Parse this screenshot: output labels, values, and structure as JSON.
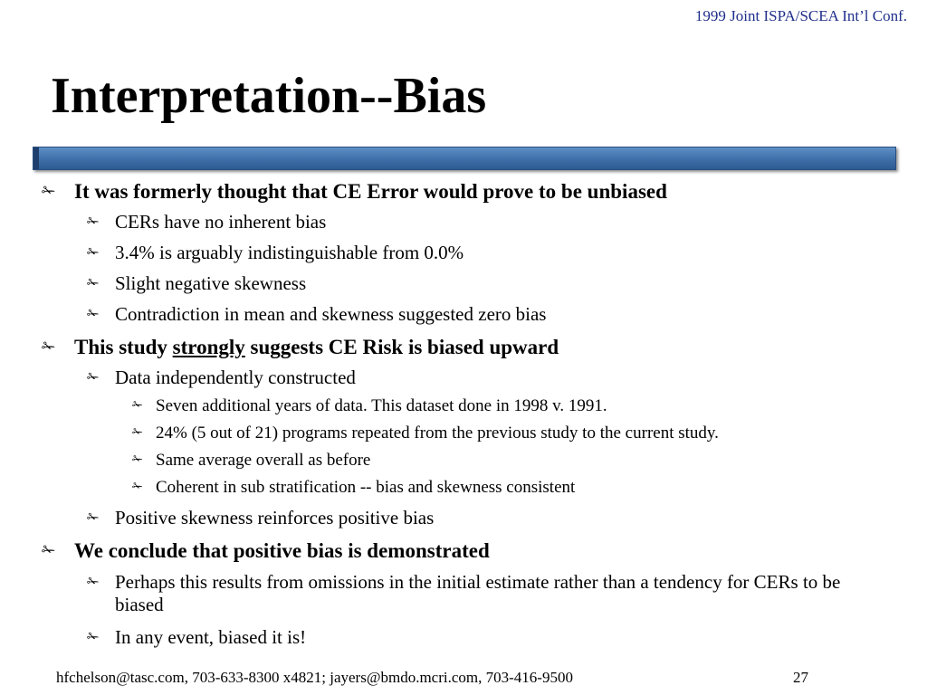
{
  "header": {
    "conference": "1999 Joint ISPA/SCEA Int’l Conf."
  },
  "slide": {
    "title": "Interpretation--Bias",
    "bullet_glyph": "✁",
    "bullets": [
      "It was formerly thought that CE Error would prove to be unbiased",
      "CERs have no inherent bias",
      "3.4% is arguably indistinguishable from 0.0%",
      "Slight negative skewness",
      "Contradiction in mean and skewness suggested zero bias",
      {
        "before": "This study ",
        "emphasis": "strongly",
        "after": " suggests CE Risk is biased upward"
      },
      "Data independently constructed",
      "Seven additional years of data.  This dataset done in 1998 v. 1991.",
      "24% (5 out of 21) programs repeated from the previous study to the current study.",
      "Same average overall as before",
      "Coherent in sub stratification -- bias and skewness consistent",
      "Positive skewness reinforces positive bias",
      "We conclude that positive bias is demonstrated",
      "Perhaps this results from omissions in the initial estimate rather than a tendency for CERs to be biased",
      "In any event, biased it is!"
    ]
  },
  "footer": {
    "contact": "hfchelson@tasc.com, 703-633-8300 x4821; jayers@bmdo.mcri.com, 703-416-9500",
    "page_number": "27"
  },
  "colors": {
    "header_text": "#1f2f8a",
    "title_bar": "#3f6fa8"
  }
}
